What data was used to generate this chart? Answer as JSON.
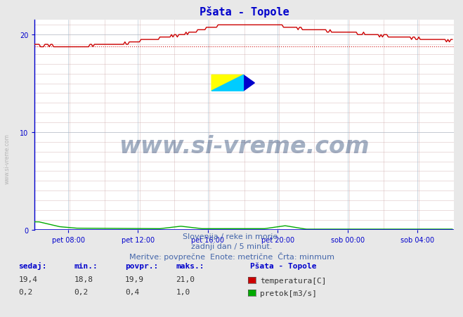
{
  "title": "Pšata - Topole",
  "title_color": "#0000cc",
  "bg_color": "#e8e8e8",
  "plot_bg_color": "#ffffff",
  "outer_bg_color": "#e0e0e8",
  "grid_color_major": "#aabbcc",
  "grid_color_minor": "#ddbbbb",
  "x_tick_labels": [
    "pet 08:00",
    "pet 12:00",
    "pet 16:00",
    "pet 20:00",
    "sob 00:00",
    "sob 04:00"
  ],
  "x_tick_positions_frac": [
    0.083,
    0.25,
    0.417,
    0.583,
    0.75,
    0.917
  ],
  "y_ticks": [
    0,
    10,
    20
  ],
  "ylim": [
    0,
    21.5
  ],
  "xlim_start": 0,
  "xlim_end": 288,
  "temp_color": "#cc0000",
  "flow_color": "#00aa00",
  "minline_color": "#cc0000",
  "minline_value": 18.8,
  "axis_color": "#0000cc",
  "watermark_text": "www.si-vreme.com",
  "watermark_color": "#1a3a6a",
  "watermark_alpha": 0.4,
  "footer_line1": "Slovenija / reke in morje.",
  "footer_line2": "zadnji dan / 5 minut.",
  "footer_line3": "Meritve: povprečne  Enote: metrične  Črta: minmum",
  "footer_color": "#4466aa",
  "legend_title": "Pšata - Topole",
  "legend_items": [
    "temperatura[C]",
    "pretok[m3/s]"
  ],
  "legend_colors": [
    "#cc0000",
    "#00aa00"
  ],
  "table_headers": [
    "sedaj:",
    "min.:",
    "povpr.:",
    "maks.:"
  ],
  "table_temp": [
    "19,4",
    "18,8",
    "19,9",
    "21,0"
  ],
  "table_flow": [
    "0,2",
    "0,2",
    "0,4",
    "1,0"
  ],
  "tick_color": "#0000cc",
  "tick_fontsize": 7,
  "sidebar_text": "www.si-vreme.com",
  "sidebar_color": "#aaaaaa",
  "logo_yellow": "#ffff00",
  "logo_cyan": "#00ccff",
  "logo_blue": "#0000cc",
  "logo_gray": "#7a7a8a"
}
